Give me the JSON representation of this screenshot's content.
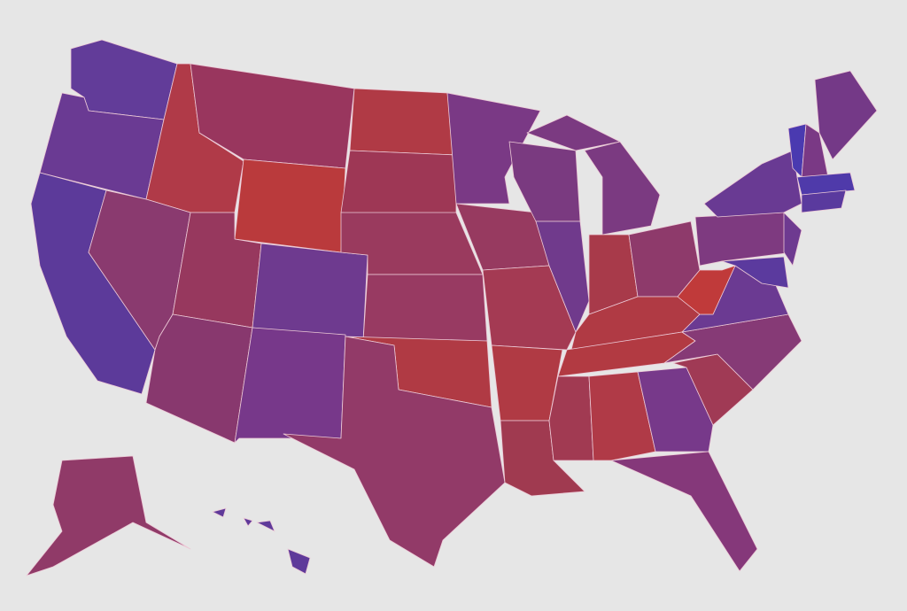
{
  "map": {
    "background": "#e6e6e6",
    "border_color": "#ecc9d6",
    "states": [
      {
        "color": "#623c99"
      },
      {
        "color": "#6a3a93"
      },
      {
        "color": "#5c3a9a"
      },
      {
        "color": "#b03a48"
      },
      {
        "color": "#8a3a6f"
      },
      {
        "color": "#99365e"
      },
      {
        "color": "#ba3a3c"
      },
      {
        "color": "#97385e"
      },
      {
        "color": "#88386e"
      },
      {
        "color": "#6e3a8f"
      },
      {
        "color": "#77388a"
      },
      {
        "color": "#b03a45"
      },
      {
        "color": "#9e3755"
      },
      {
        "color": "#9a3a5e"
      },
      {
        "color": "#983a62"
      },
      {
        "color": "#b03a44"
      },
      {
        "color": "#923a68"
      },
      {
        "color": "#7a3985"
      },
      {
        "color": "#973a60"
      },
      {
        "color": "#a43a53"
      },
      {
        "color": "#b03a44"
      },
      {
        "color": "#a03a50"
      },
      {
        "color": "#7a3a80"
      },
      {
        "color": "#703a8c"
      },
      {
        "color": "#7b3a81"
      },
      {
        "color": "#a83a4a"
      },
      {
        "color": "#8e3a6b"
      },
      {
        "color": "#b03a44"
      },
      {
        "color": "#b23a42"
      },
      {
        "color": "#a13a52"
      },
      {
        "color": "#b03a47"
      },
      {
        "color": "#77398a"
      },
      {
        "color": "#85387a"
      },
      {
        "color": "#a03a55"
      },
      {
        "color": "#863a76"
      },
      {
        "color": "#6b3a92"
      },
      {
        "color": "#c03a3a"
      },
      {
        "color": "#7e3a80"
      },
      {
        "color": "#693a93"
      },
      {
        "color": "#6e3a90"
      },
      {
        "color": "#5b3a9e"
      },
      {
        "color": "#4a3ab0"
      },
      {
        "color": "#7a3985"
      },
      {
        "color": "#743987"
      },
      {
        "color": "#4f3aaa"
      },
      {
        "color": "#5a3a9e"
      },
      {
        "color": "#903a68"
      },
      {
        "color": "#5f3a9a"
      }
    ]
  }
}
